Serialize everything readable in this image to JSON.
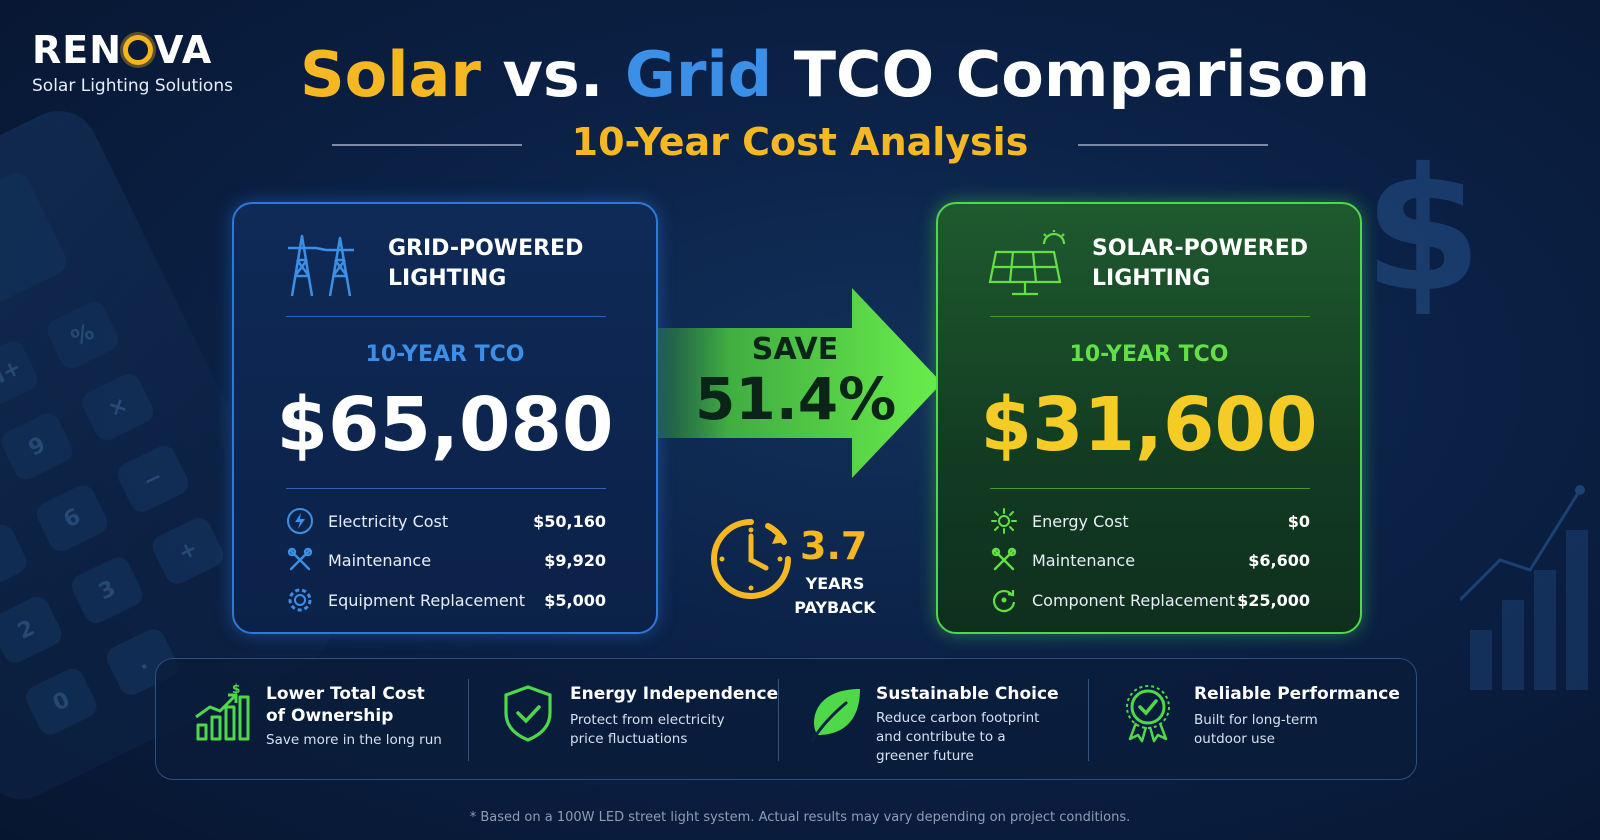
{
  "brand": {
    "name_left": "REN",
    "name_right": "VA",
    "tagline": "Solar Lighting Solutions"
  },
  "header": {
    "title_solar": "Solar",
    "title_vs": "vs.",
    "title_grid": "Grid",
    "title_rest": "TCO Comparison",
    "subtitle": "10-Year Cost Analysis"
  },
  "grid_card": {
    "title_line1": "GRID-POWERED",
    "title_line2": "LIGHTING",
    "tco_label": "10-YEAR TCO",
    "tco_value": "$65,080",
    "rows": [
      {
        "icon": "lightning-icon",
        "label": "Electricity Cost",
        "value": "$50,160"
      },
      {
        "icon": "tools-icon",
        "label": "Maintenance",
        "value": "$9,920"
      },
      {
        "icon": "gear-icon",
        "label": "Equipment Replacement",
        "value": "$5,000"
      }
    ]
  },
  "solar_card": {
    "title_line1": "SOLAR-POWERED",
    "title_line2": "LIGHTING",
    "tco_label": "10-YEAR TCO",
    "tco_value": "$31,600",
    "rows": [
      {
        "icon": "sun-icon",
        "label": "Energy Cost",
        "value": "$0"
      },
      {
        "icon": "tools-icon",
        "label": "Maintenance",
        "value": "$6,600"
      },
      {
        "icon": "refresh-icon",
        "label": "Component Replacement",
        "value": "$25,000"
      }
    ]
  },
  "savings": {
    "label": "SAVE",
    "percent": "51.4%"
  },
  "payback": {
    "value": "3.7",
    "label_line1": "YEARS",
    "label_line2": "PAYBACK"
  },
  "benefits": [
    {
      "icon": "chart-growth-icon",
      "title_line1": "Lower Total Cost",
      "title_line2": "of Ownership",
      "desc_line1": "Save more in the long run",
      "desc_line2": "",
      "desc_line3": ""
    },
    {
      "icon": "shield-check-icon",
      "title_line1": "Energy Independence",
      "title_line2": "",
      "desc_line1": "Protect from electricity",
      "desc_line2": "price fluctuations",
      "desc_line3": ""
    },
    {
      "icon": "leaf-icon",
      "title_line1": "Sustainable Choice",
      "title_line2": "",
      "desc_line1": "Reduce carbon footprint",
      "desc_line2": "and contribute to a",
      "desc_line3": "greener future"
    },
    {
      "icon": "award-badge-icon",
      "title_line1": "Reliable Performance",
      "title_line2": "",
      "desc_line1": "Built for long-term",
      "desc_line2": "outdoor use",
      "desc_line3": ""
    }
  ],
  "footnote": "* Based on a 100W LED street light system. Actual results may vary depending on project conditions.",
  "colors": {
    "solar_gold": "#f5b823",
    "grid_blue": "#3b8fe6",
    "solar_green": "#4fd84a",
    "background": "#0b2146"
  }
}
